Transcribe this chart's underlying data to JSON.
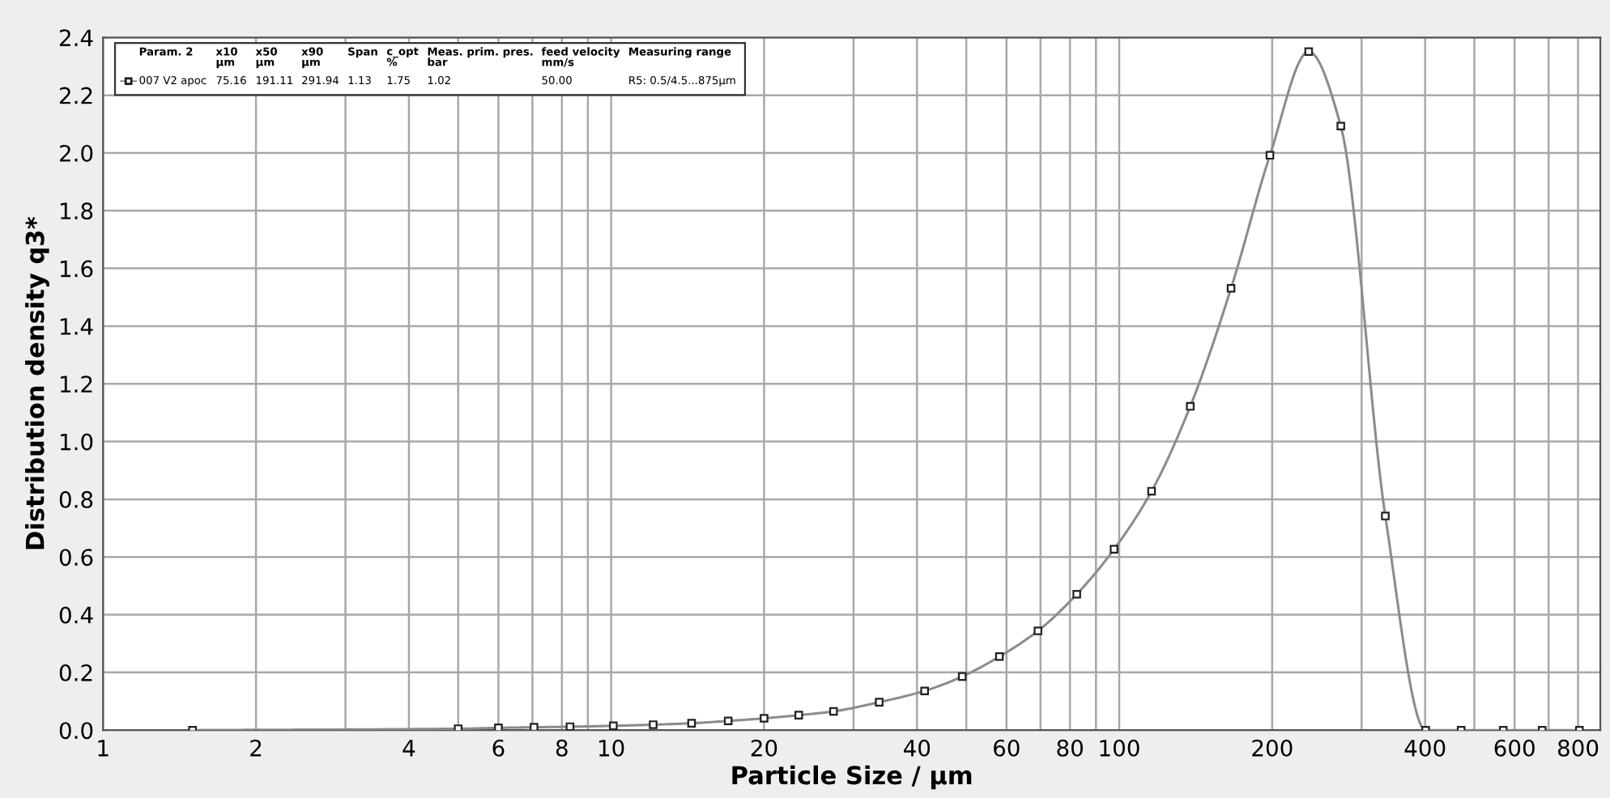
{
  "chart_data": {
    "type": "line",
    "xlabel": "Particle Size / µm",
    "ylabel": "Distribution density q3*",
    "log": "x",
    "grid": true,
    "legend": "top left",
    "marker": "square",
    "line_style": "solid",
    "xlim": [
      1,
      885
    ],
    "ylim": [
      0,
      2.4
    ],
    "xticks": [
      1,
      2,
      {
        "value": 3,
        "label": null
      },
      4,
      {
        "value": 5,
        "label": null
      },
      6,
      {
        "value": 7,
        "label": null
      },
      8,
      {
        "value": 9,
        "label": null
      },
      10,
      20,
      {
        "value": 30,
        "label": null
      },
      40,
      {
        "value": 50,
        "label": null
      },
      60,
      {
        "value": 70,
        "label": null
      },
      80,
      {
        "value": 90,
        "label": null
      },
      100,
      200,
      {
        "value": 300,
        "label": null
      },
      400,
      {
        "value": 500,
        "label": null
      },
      600,
      {
        "value": 700,
        "label": null
      },
      800
    ],
    "yticks": [
      {
        "value": 0,
        "label": "0.0"
      },
      0.2,
      0.4,
      0.6,
      0.8,
      {
        "value": 1,
        "label": "1.0"
      },
      1.2,
      1.4,
      1.6,
      1.8,
      {
        "value": 2,
        "label": "2.0"
      },
      2.2,
      2.4
    ],
    "series": [
      {
        "name": "007 V2 apoc",
        "color": "#8c8c8c",
        "x": [
          1.5,
          5.0,
          6.0,
          7.05,
          8.3,
          10.1,
          12.1,
          14.4,
          17.0,
          20.0,
          23.4,
          27.4,
          33.7,
          41.4,
          49.1,
          58.1,
          69.2,
          82.5,
          97.7,
          115.8,
          138,
          166,
          198,
          236,
          273,
          334,
          401,
          471,
          570,
          680,
          805
        ],
        "values": [
          0.0,
          0.005,
          0.008,
          0.01,
          0.012,
          0.015,
          0.019,
          0.024,
          0.032,
          0.041,
          0.052,
          0.065,
          0.097,
          0.136,
          0.186,
          0.255,
          0.344,
          0.471,
          0.627,
          0.828,
          1.122,
          1.531,
          1.992,
          2.351,
          2.093,
          0.742,
          0.0,
          0.0,
          0.0,
          0.0,
          0.0
        ]
      }
    ],
    "annotations": [
      "Param. 2",
      "x10\nµm",
      "x50\nµm",
      "x90\nµm",
      "Span",
      "c_opt\n%",
      "Meas. prim. pres.\nbar",
      "feed velocity\nmm/s",
      "Measuring range",
      "75.16",
      "191.11",
      "291.94",
      "1.13",
      "1.75",
      "1.02",
      "50.00",
      "R5: 0.5/4.5...875µm"
    ]
  }
}
